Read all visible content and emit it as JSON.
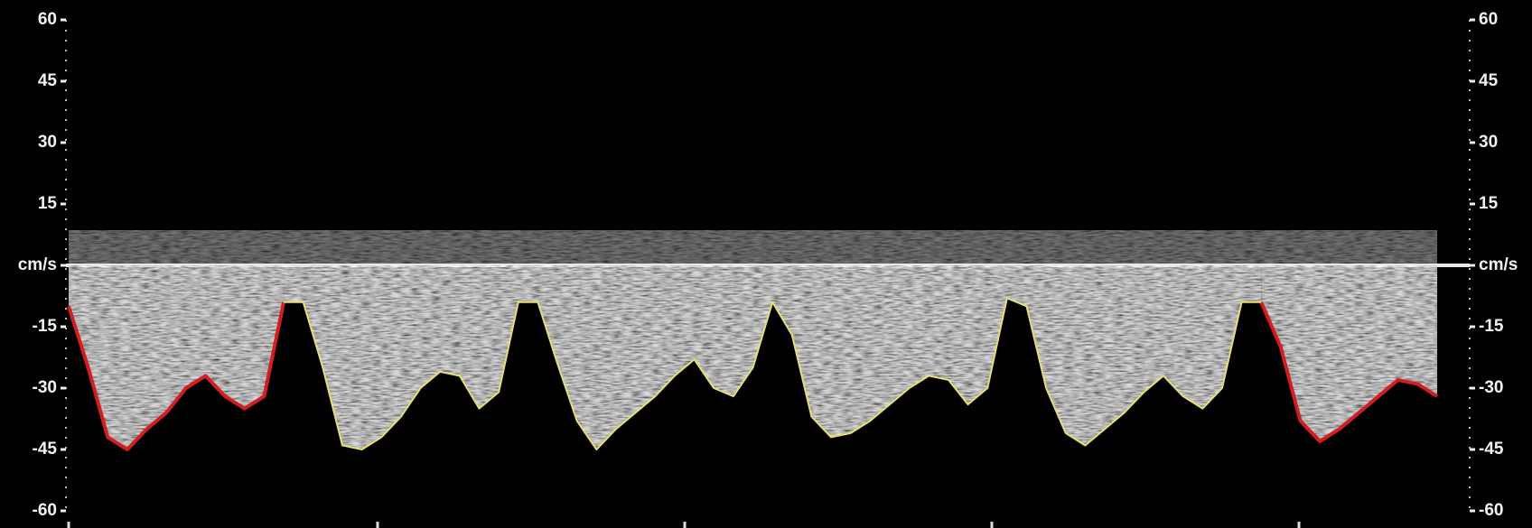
{
  "chart_data": {
    "type": "line",
    "ylim": [
      -60,
      60
    ],
    "yticks": [
      60,
      45,
      30,
      15,
      {
        "value": 0,
        "label": "cm/s"
      },
      -15,
      -30,
      -45,
      -60
    ],
    "series": [
      {
        "color": "#d21e1e",
        "values": [
          -10,
          -25,
          -42,
          -45,
          -40,
          -36,
          -30,
          -27,
          -32,
          -35,
          -32,
          -9,
          null,
          null,
          null,
          null,
          null,
          null,
          null,
          null,
          null,
          null,
          null,
          null,
          null,
          null,
          null,
          null,
          null,
          null,
          null,
          null,
          null,
          null,
          null,
          null,
          null,
          null,
          null,
          null,
          null,
          null,
          null,
          null,
          null,
          null,
          null,
          null,
          null,
          null,
          null,
          null,
          null,
          null,
          null,
          null,
          null,
          null,
          null,
          null,
          null,
          -9,
          -20,
          -38,
          -43,
          -40,
          -36,
          -32,
          -28,
          -29,
          -32
        ]
      },
      {
        "color": "#e6e070",
        "values": [
          null,
          null,
          null,
          null,
          null,
          null,
          null,
          null,
          null,
          null,
          null,
          -9,
          -9,
          -25,
          -44,
          -45,
          -42,
          -37,
          -30,
          -26,
          -27,
          -35,
          -31,
          -9,
          -9,
          -24,
          -38,
          -45,
          -40,
          -36,
          -32,
          -27,
          -23,
          -30,
          -32,
          -25,
          -9,
          -17,
          -37,
          -42,
          -41,
          -38,
          -34,
          -30,
          -27,
          -28,
          -34,
          -30,
          -8,
          -10,
          -30,
          -41,
          -44,
          -40,
          -36,
          -31,
          -27,
          -32,
          -35,
          -30,
          -9,
          -9,
          null,
          null,
          null,
          null,
          null,
          null,
          null,
          null,
          null
        ]
      }
    ]
  }
}
